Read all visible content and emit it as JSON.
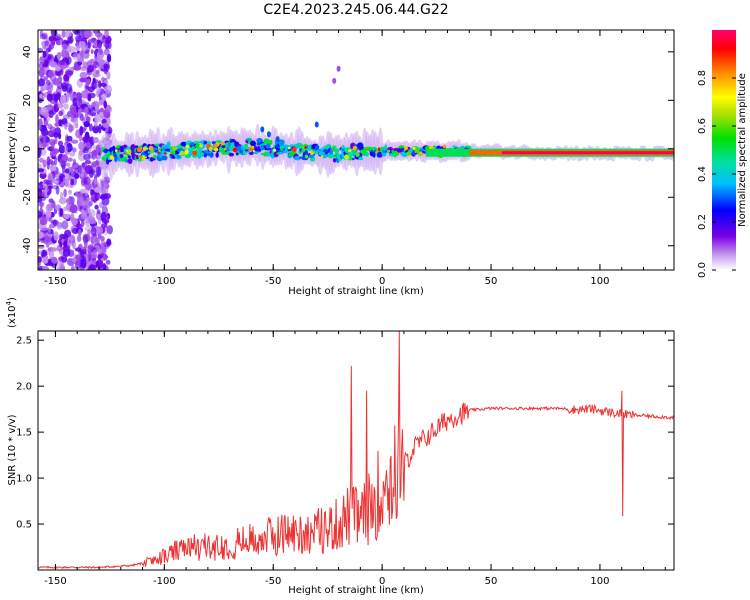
{
  "title": "C2E4.2023.245.06.44.G22",
  "chart_data": [
    {
      "type": "heatmap",
      "xlabel": "Height of straight line (km)",
      "ylabel": "Frequency (Hz)",
      "xlim": [
        -158,
        134
      ],
      "ylim": [
        -50,
        49
      ],
      "xticks": [
        -150,
        -100,
        -50,
        0,
        50,
        100
      ],
      "yticks": [
        -40,
        -20,
        0,
        20,
        40
      ],
      "colorbar": {
        "label": "Normalized spectral amplitude",
        "range": [
          0,
          1
        ],
        "ticks": [
          "0.0",
          "0.2",
          "0.4",
          "0.6",
          "0.8"
        ],
        "tick_values": [
          0.0,
          0.2,
          0.4,
          0.6,
          0.8
        ]
      },
      "features": {
        "noise_region_x": [
          -158,
          -125
        ],
        "main_band_frequency_center": [
          [
            -128,
            -3
          ],
          [
            -100,
            -1
          ],
          [
            -80,
            0
          ],
          [
            -60,
            1
          ],
          [
            -50,
            0
          ],
          [
            -25,
            -2
          ],
          [
            0,
            -1
          ],
          [
            20,
            -1
          ],
          [
            50,
            -1
          ],
          [
            100,
            -2
          ],
          [
            134,
            -2
          ]
        ],
        "strong_line_x": [
          40,
          134
        ]
      }
    },
    {
      "type": "line",
      "xlabel": "Height of straight line (km)",
      "ylabel": "SNR (10 * v/v)",
      "y_scale_label": "(x10",
      "y_scale_exponent": "4",
      "xlim": [
        -158,
        134
      ],
      "ylim": [
        0,
        2.6
      ],
      "xticks": [
        -150,
        -100,
        -50,
        0,
        50,
        100
      ],
      "yticks": [
        0.5,
        1.0,
        1.5,
        2.0,
        2.5
      ],
      "ytick_labels": [
        "0.5",
        "1.0",
        "1.5",
        "2.0",
        "2.5"
      ],
      "color": "#ee3333",
      "series": [
        {
          "x": [
            -158,
            -130,
            -115,
            -105,
            -95,
            -85,
            -75,
            -65,
            -55,
            -45,
            -35,
            -25,
            -20,
            -15,
            -10,
            -5,
            0,
            5,
            10,
            15,
            20,
            25,
            30,
            35,
            40,
            50,
            60,
            70,
            80,
            90,
            95,
            100,
            105,
            110,
            120,
            134
          ],
          "y": [
            0.03,
            0.03,
            0.05,
            0.1,
            0.2,
            0.25,
            0.25,
            0.3,
            0.35,
            0.4,
            0.4,
            0.45,
            0.5,
            0.6,
            0.55,
            0.7,
            0.9,
            1.0,
            1.15,
            1.35,
            1.45,
            1.55,
            1.65,
            1.7,
            1.74,
            1.76,
            1.76,
            1.76,
            1.76,
            1.75,
            1.76,
            1.74,
            1.72,
            1.7,
            1.68,
            1.66
          ]
        }
      ],
      "peaks": [
        {
          "x": -14,
          "y": 2.22
        },
        {
          "x": -7,
          "y": 1.95
        },
        {
          "x": 8,
          "y": 2.6
        },
        {
          "x": 110,
          "y": 1.95
        }
      ]
    }
  ]
}
